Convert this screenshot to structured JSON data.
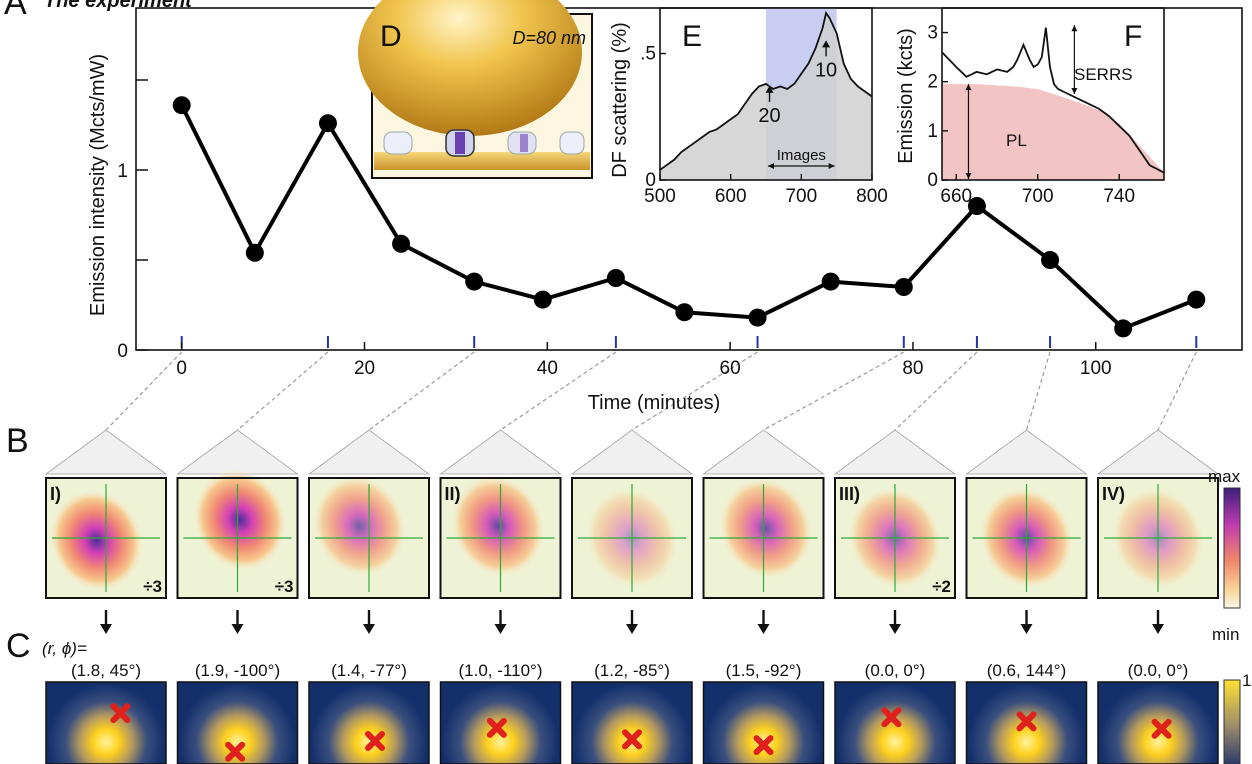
{
  "figure": {
    "header_text": "The experiment",
    "panel_letters": {
      "a": "A",
      "b": "B",
      "c": "C",
      "d": "D",
      "e": "E",
      "f": "F"
    }
  },
  "chart_data": [
    {
      "type": "line",
      "panel": "A",
      "xlabel": "Time (minutes)",
      "ylabel": "Emission intensity (Mcts/mW)",
      "xlim": [
        -5,
        116
      ],
      "ylim": [
        0,
        1.9
      ],
      "x_ticks": [
        0,
        20,
        40,
        60,
        80,
        100
      ],
      "y_ticks": [
        0,
        0.5,
        1,
        1.5
      ],
      "y_tick_labels": [
        "0",
        "",
        "1",
        ""
      ],
      "grid": false,
      "x": [
        0,
        8,
        16,
        24,
        32,
        39.5,
        47.5,
        55,
        63,
        71,
        79,
        87,
        95,
        103,
        111
      ],
      "y": [
        1.36,
        0.54,
        1.26,
        0.59,
        0.38,
        0.28,
        0.4,
        0.21,
        0.18,
        0.38,
        0.35,
        0.8,
        0.5,
        0.12,
        0.28
      ],
      "imaged_times": [
        0,
        16,
        32,
        47.5,
        63,
        79,
        87,
        95,
        111
      ]
    },
    {
      "type": "area",
      "panel": "E",
      "ylabel": "DF scattering (%)",
      "xlim": [
        500,
        800
      ],
      "ylim": [
        0,
        0.68
      ],
      "x_ticks": [
        500,
        600,
        700,
        800
      ],
      "y_ticks": [
        0,
        0.5
      ],
      "y_tick_labels": [
        "0",
        ".5"
      ],
      "band": [
        650,
        750
      ],
      "band_label": "Images",
      "annotations": [
        {
          "text": "20",
          "x": 655,
          "y": 0.38
        },
        {
          "text": "10",
          "x": 735,
          "y": 0.56
        }
      ],
      "x": [
        500,
        510,
        520,
        530,
        540,
        550,
        560,
        570,
        580,
        590,
        600,
        610,
        620,
        630,
        640,
        650,
        660,
        670,
        680,
        690,
        700,
        710,
        720,
        730,
        735,
        740,
        750,
        760,
        770,
        780,
        790,
        800
      ],
      "y": [
        0.04,
        0.06,
        0.08,
        0.11,
        0.13,
        0.15,
        0.17,
        0.19,
        0.2,
        0.22,
        0.24,
        0.26,
        0.3,
        0.34,
        0.37,
        0.38,
        0.36,
        0.37,
        0.36,
        0.38,
        0.42,
        0.46,
        0.52,
        0.6,
        0.66,
        0.64,
        0.58,
        0.46,
        0.4,
        0.37,
        0.35,
        0.33
      ]
    },
    {
      "type": "area",
      "panel": "F",
      "ylabel": "Emission (kcts)",
      "xlim": [
        653,
        762
      ],
      "ylim": [
        0,
        3.5
      ],
      "x_ticks": [
        660,
        700,
        740
      ],
      "y_ticks": [
        0,
        1,
        2,
        3
      ],
      "labels": [
        "SERRS",
        "PL"
      ],
      "x": [
        653,
        660,
        665,
        670,
        675,
        680,
        685,
        688,
        690,
        693,
        696,
        698,
        700,
        702,
        704,
        706,
        708,
        710,
        715,
        720,
        725,
        730,
        735,
        740,
        745,
        750,
        755,
        762
      ],
      "y": [
        2.6,
        2.3,
        2.1,
        2.2,
        2.15,
        2.25,
        2.2,
        2.3,
        2.45,
        2.75,
        2.45,
        2.3,
        2.35,
        2.5,
        3.1,
        2.3,
        1.95,
        1.85,
        1.75,
        1.65,
        1.55,
        1.45,
        1.3,
        1.1,
        0.9,
        0.6,
        0.3,
        0.15
      ],
      "pl_x": [
        653,
        670,
        690,
        700,
        710,
        720,
        730,
        740,
        750,
        762
      ],
      "pl_y": [
        1.95,
        1.95,
        1.9,
        1.85,
        1.72,
        1.58,
        1.42,
        1.15,
        0.7,
        0.15
      ]
    }
  ],
  "inset_d": {
    "label": "D=80 nm"
  },
  "images_b": [
    {
      "roman": "I)",
      "factor": "÷3"
    },
    {
      "roman": "",
      "factor": "÷3"
    },
    {
      "roman": "",
      "factor": ""
    },
    {
      "roman": "II)",
      "factor": ""
    },
    {
      "roman": "",
      "factor": ""
    },
    {
      "roman": "",
      "factor": ""
    },
    {
      "roman": "III)",
      "factor": "÷2"
    },
    {
      "roman": "",
      "factor": ""
    },
    {
      "roman": "IV)",
      "factor": ""
    }
  ],
  "colorbar_b": {
    "max": "max",
    "min": "min"
  },
  "coord_header": "(r, ϕ)=",
  "coords": [
    "(1.8, 45°)",
    "(1.9, -100°)",
    "(1.4, -77°)",
    "(1.0, -110°)",
    "(1.2, -85°)",
    "(1.5, -92°)",
    "(0.0, 0°)",
    "(0.6, 144°)",
    "(0.0, 0°)"
  ],
  "colorbar_c": {
    "max": "1"
  },
  "colors": {
    "line": "#000000",
    "band": "#c9cdf2",
    "area_gray": "#d0d0d0",
    "pl_fill": "#f2c4c4",
    "cross": "#e0201c",
    "spot": "#ffd21e"
  }
}
